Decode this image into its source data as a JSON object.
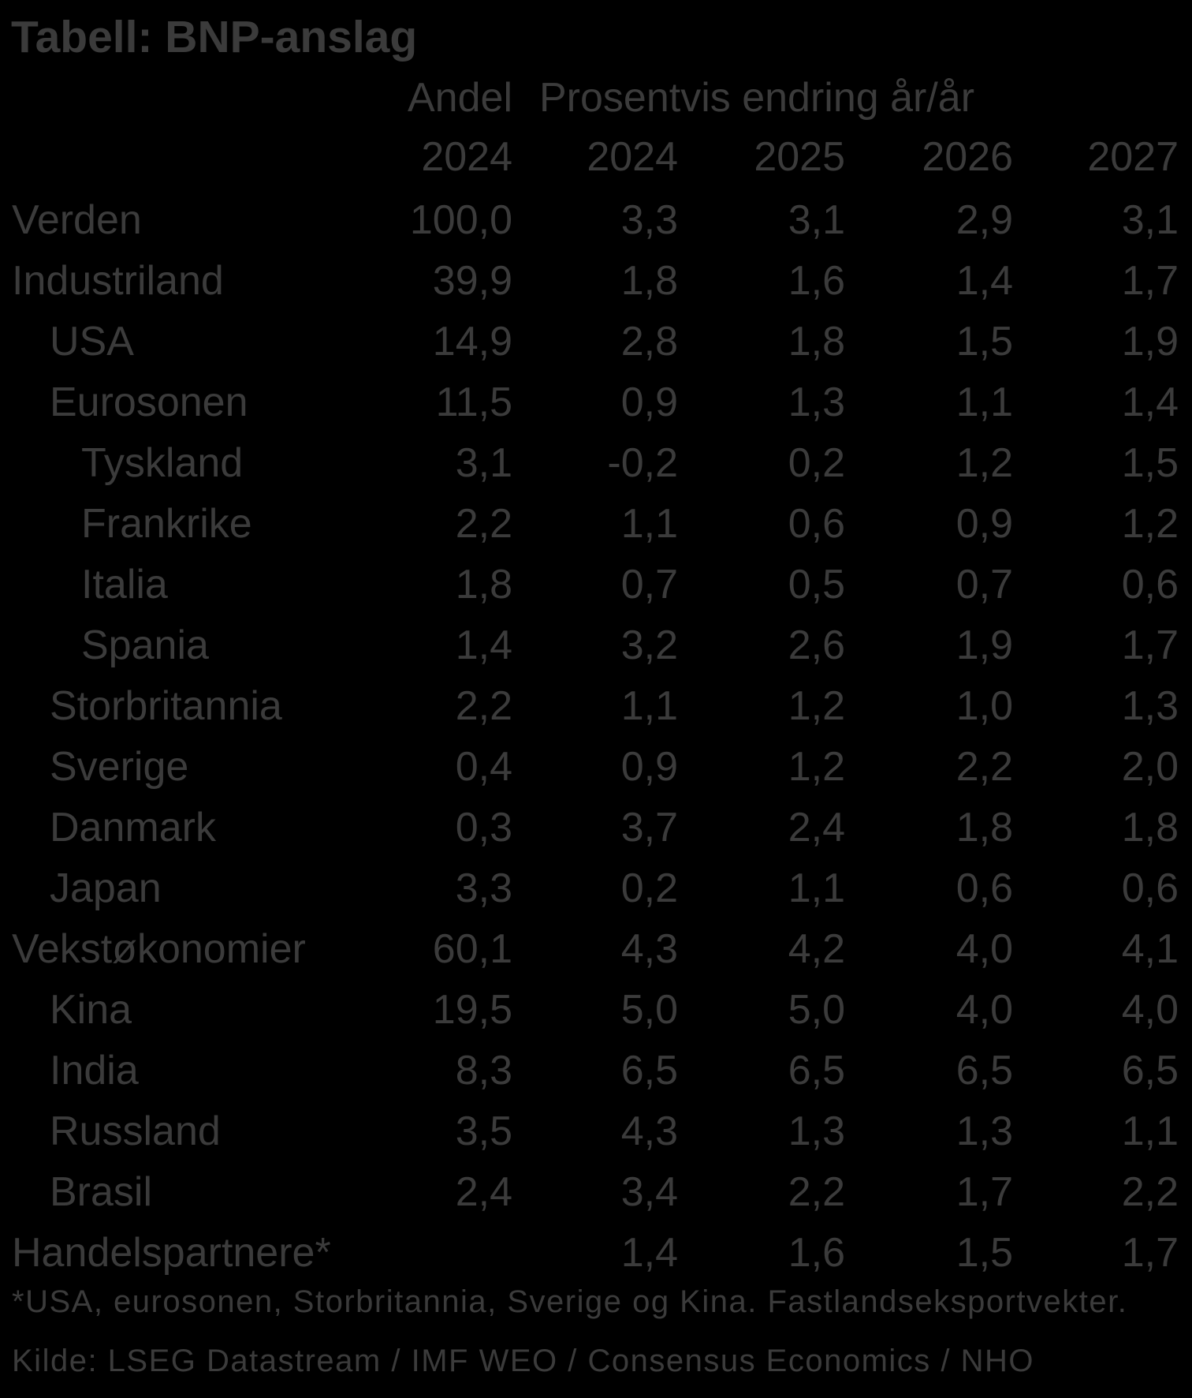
{
  "title": "Tabell: BNP-anslag",
  "table": {
    "header": {
      "andel_label": "Andel",
      "change_label": "Prosentvis endring år/år",
      "andel_year": "2024",
      "years": [
        "2024",
        "2025",
        "2026",
        "2027"
      ]
    },
    "rows": [
      {
        "label": "Verden",
        "indent": 0,
        "andel": "100,0",
        "values": [
          "3,3",
          "3,1",
          "2,9",
          "3,1"
        ]
      },
      {
        "label": "Industriland",
        "indent": 0,
        "andel": "39,9",
        "values": [
          "1,8",
          "1,6",
          "1,4",
          "1,7"
        ]
      },
      {
        "label": "USA",
        "indent": 1,
        "andel": "14,9",
        "values": [
          "2,8",
          "1,8",
          "1,5",
          "1,9"
        ]
      },
      {
        "label": "Eurosonen",
        "indent": 1,
        "andel": "11,5",
        "values": [
          "0,9",
          "1,3",
          "1,1",
          "1,4"
        ]
      },
      {
        "label": "Tyskland",
        "indent": 2,
        "andel": "3,1",
        "values": [
          "-0,2",
          "0,2",
          "1,2",
          "1,5"
        ]
      },
      {
        "label": "Frankrike",
        "indent": 2,
        "andel": "2,2",
        "values": [
          "1,1",
          "0,6",
          "0,9",
          "1,2"
        ]
      },
      {
        "label": "Italia",
        "indent": 2,
        "andel": "1,8",
        "values": [
          "0,7",
          "0,5",
          "0,7",
          "0,6"
        ]
      },
      {
        "label": "Spania",
        "indent": 2,
        "andel": "1,4",
        "values": [
          "3,2",
          "2,6",
          "1,9",
          "1,7"
        ]
      },
      {
        "label": "Storbritannia",
        "indent": 1,
        "andel": "2,2",
        "values": [
          "1,1",
          "1,2",
          "1,0",
          "1,3"
        ]
      },
      {
        "label": "Sverige",
        "indent": 1,
        "andel": "0,4",
        "values": [
          "0,9",
          "1,2",
          "2,2",
          "2,0"
        ]
      },
      {
        "label": "Danmark",
        "indent": 1,
        "andel": "0,3",
        "values": [
          "3,7",
          "2,4",
          "1,8",
          "1,8"
        ]
      },
      {
        "label": "Japan",
        "indent": 1,
        "andel": "3,3",
        "values": [
          "0,2",
          "1,1",
          "0,6",
          "0,6"
        ]
      },
      {
        "label": "Vekstøkonomier",
        "indent": 0,
        "andel": "60,1",
        "values": [
          "4,3",
          "4,2",
          "4,0",
          "4,1"
        ]
      },
      {
        "label": "Kina",
        "indent": 1,
        "andel": "19,5",
        "values": [
          "5,0",
          "5,0",
          "4,0",
          "4,0"
        ]
      },
      {
        "label": "India",
        "indent": 1,
        "andel": "8,3",
        "values": [
          "6,5",
          "6,5",
          "6,5",
          "6,5"
        ]
      },
      {
        "label": "Russland",
        "indent": 1,
        "andel": "3,5",
        "values": [
          "4,3",
          "1,3",
          "1,3",
          "1,1"
        ]
      },
      {
        "label": "Brasil",
        "indent": 1,
        "andel": "2,4",
        "values": [
          "3,4",
          "2,2",
          "1,7",
          "2,2"
        ]
      },
      {
        "label": "Handelspartnere*",
        "indent": 0,
        "andel": "",
        "values": [
          "1,4",
          "1,6",
          "1,5",
          "1,7"
        ]
      }
    ]
  },
  "footnote": "*USA, eurosonen, Storbritannia, Sverige og Kina. Fastlandseksportvekter.",
  "source": "Kilde: LSEG Datastream / IMF WEO / Consensus Economics / NHO",
  "colors": {
    "background": "#000000",
    "text": "#3b3b3b"
  }
}
